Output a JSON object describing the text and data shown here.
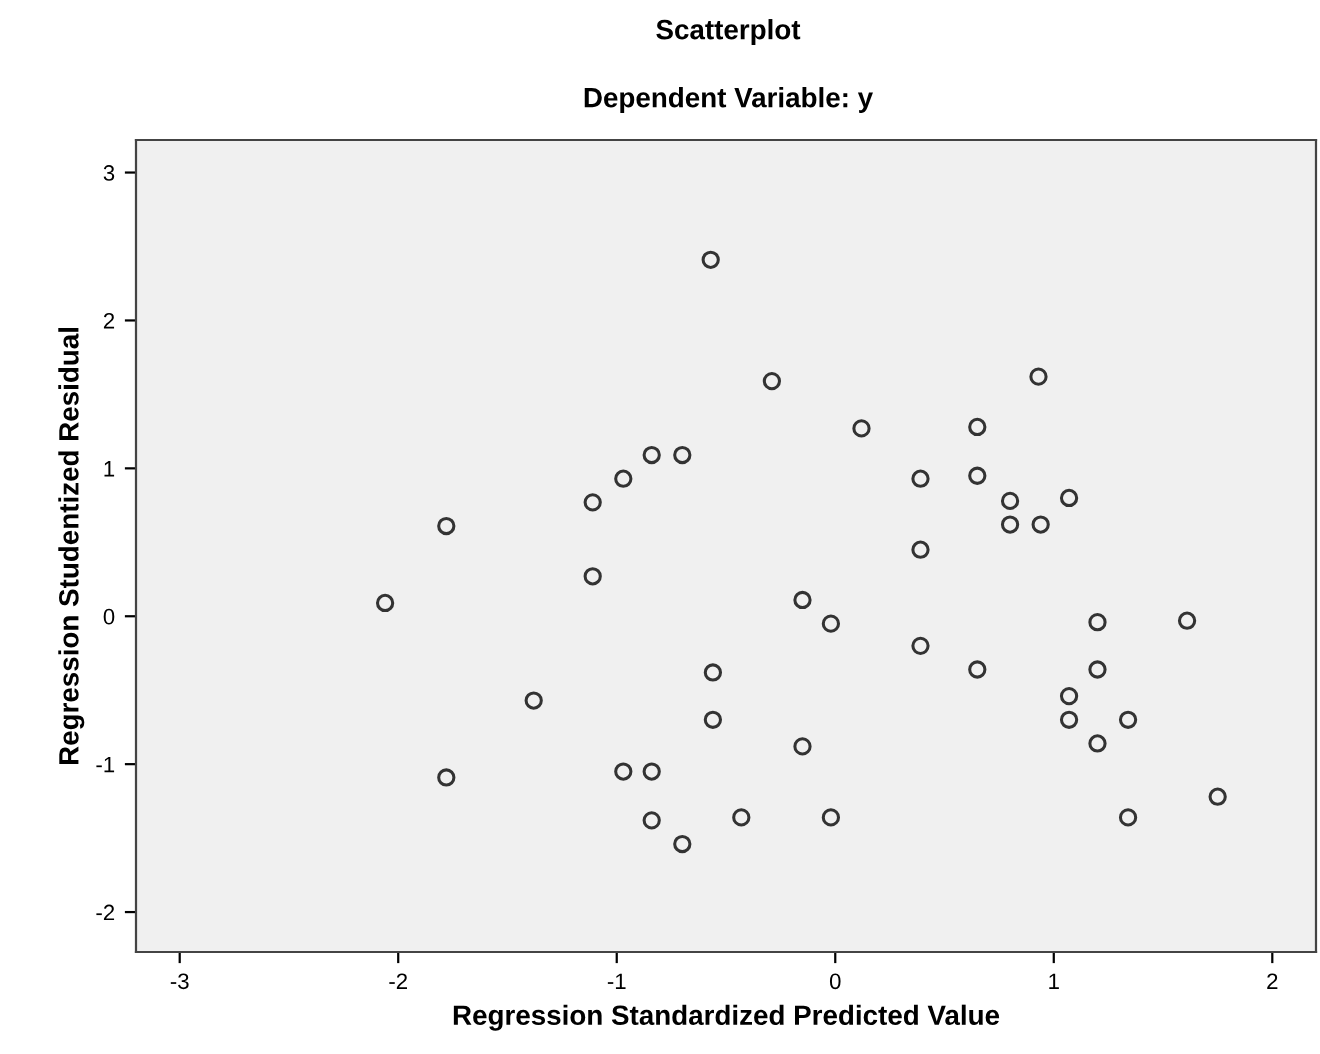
{
  "chart_data": {
    "type": "scatter",
    "title": "Scatterplot",
    "subtitle": "Dependent Variable: y",
    "xlabel": "Regression Standardized Predicted Value",
    "ylabel": "Regression Studentized Residual",
    "xlim": [
      -3.2,
      2.2
    ],
    "ylim": [
      -2.27,
      3.22
    ],
    "xticks": [
      -3,
      -2,
      -1,
      0,
      1,
      2
    ],
    "yticks": [
      -2,
      -1,
      0,
      1,
      2,
      3
    ],
    "grid": false,
    "legend": false,
    "marker": "circle",
    "series": [
      {
        "color": "#333333",
        "x": [
          -0.57,
          -0.29,
          0.93,
          0.12,
          0.65,
          -0.84,
          -0.7,
          -0.97,
          -1.11,
          0.39,
          0.65,
          0.8,
          1.07,
          0.8,
          0.94,
          -1.78,
          0.39,
          -2.06,
          -1.11,
          -0.15,
          -0.02,
          1.2,
          1.61,
          0.39,
          -0.56,
          1.2,
          -1.38,
          1.07,
          0.65,
          -0.56,
          1.07,
          1.34,
          -0.15,
          1.2,
          -1.78,
          -0.97,
          -0.84,
          1.75,
          -0.84,
          -0.43,
          -0.02,
          1.34,
          -0.7
        ],
        "values": [
          2.41,
          1.59,
          1.62,
          1.27,
          1.28,
          1.09,
          1.09,
          0.93,
          0.77,
          0.93,
          0.95,
          0.78,
          0.8,
          0.62,
          0.62,
          0.61,
          0.45,
          0.09,
          0.27,
          0.11,
          -0.05,
          -0.04,
          -0.03,
          -0.2,
          -0.38,
          -0.36,
          -0.57,
          -0.54,
          -0.36,
          -0.7,
          -0.7,
          -0.7,
          -0.88,
          -0.86,
          -1.09,
          -1.05,
          -1.05,
          -1.22,
          -1.38,
          -1.36,
          -1.36,
          -1.36,
          -1.54
        ]
      }
    ]
  }
}
